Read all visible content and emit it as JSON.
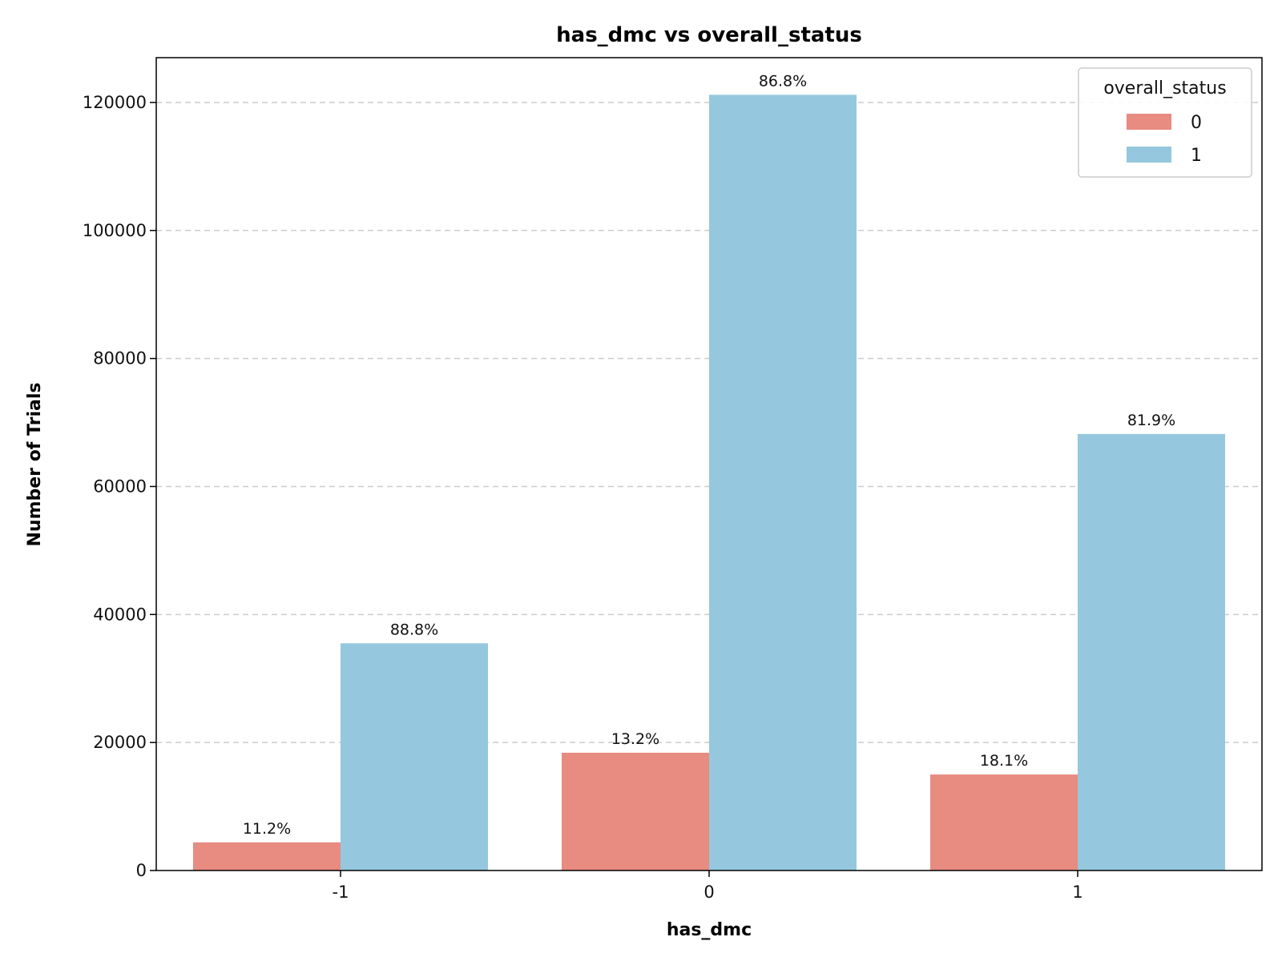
{
  "chart_data": {
    "type": "bar",
    "title": "has_dmc vs overall_status",
    "xlabel": "has_dmc",
    "ylabel": "Number of Trials",
    "categories": [
      "-1",
      "0",
      "1"
    ],
    "ylim": [
      0,
      127000
    ],
    "yticks": [
      0,
      20000,
      40000,
      60000,
      80000,
      100000,
      120000
    ],
    "grid": "y-dashed",
    "legend": {
      "title": "overall_status",
      "placement": "top-right"
    },
    "series": [
      {
        "name": "0",
        "color": "#E88B80",
        "values": [
          4400,
          18400,
          15000
        ],
        "labels": [
          "11.2%",
          "13.2%",
          "18.1%"
        ]
      },
      {
        "name": "1",
        "color": "#95C8DE",
        "values": [
          35500,
          121200,
          68200
        ],
        "labels": [
          "88.8%",
          "86.8%",
          "81.9%"
        ]
      }
    ]
  }
}
